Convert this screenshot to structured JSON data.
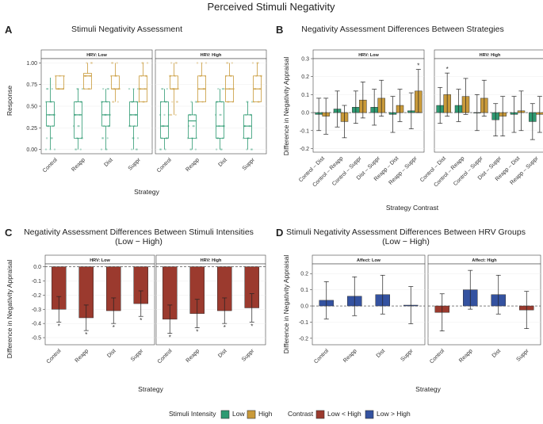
{
  "title": "Perceived Stimuli Negativity",
  "colors": {
    "low_green": "#2e9a72",
    "high_gold": "#c99a3a",
    "low_lt_high_red": "#9b3a2e",
    "low_gt_high_blue": "#3452a0"
  },
  "panels": {
    "A": {
      "letter": "A",
      "title": "Stimuli Negativity Assessment",
      "strips": [
        "HRV: Low",
        "HRV: High"
      ],
      "xlabel": "Strategy",
      "ylabel": "Response"
    },
    "B": {
      "letter": "B",
      "title": "Negativity Assessment Differences Between Strategies",
      "strips": [
        "HRV: Low",
        "HRV: High"
      ],
      "xlabel": "Strategy Contrast",
      "ylabel": "Difference in Negativity Appraisal"
    },
    "C": {
      "letter": "C",
      "title_line1": "Negativity Assessment Differences Between Stimuli Intensities",
      "title_line2": "(Low − High)",
      "strips": [
        "HRV: Low",
        "HRV: High"
      ],
      "xlabel": "Strategy",
      "ylabel": "Difference in Negativity Appraisal"
    },
    "D": {
      "letter": "D",
      "title_line1": "Stimuli Negativity Assessment Differences Between HRV Groups",
      "title_line2": "(Low − High)",
      "strips": [
        "Affect: Low",
        "Affect: High"
      ],
      "xlabel": "Strategy",
      "ylabel": "Difference in Negativity Appraisal"
    }
  },
  "legend": {
    "intensity_title": "Stimuli Intensity",
    "intensity_items": [
      "Low",
      "High"
    ],
    "contrast_title": "Contrast",
    "contrast_items": [
      "Low < High",
      "Low > High"
    ]
  },
  "chart_data": [
    {
      "id": "A",
      "type": "box",
      "categories": [
        "Control",
        "Reapp",
        "Dist",
        "Suppr"
      ],
      "facets": [
        "HRV: Low",
        "HRV: High"
      ],
      "series": [
        "Low",
        "High"
      ],
      "ylim": [
        -0.05,
        1.05
      ],
      "yticks": [
        "0.00",
        "0.25",
        "0.50",
        "0.75",
        "1.00"
      ],
      "boxes": [
        [
          [
            {
              "min": 0.0,
              "q1": 0.27,
              "med": 0.4,
              "q3": 0.55,
              "max": 0.83
            },
            {
              "min": 0.7,
              "q1": 0.7,
              "med": 0.7,
              "q3": 0.85,
              "max": 0.85
            }
          ],
          [
            {
              "min": 0.0,
              "q1": 0.13,
              "med": 0.4,
              "q3": 0.55,
              "max": 0.7
            },
            {
              "min": 0.7,
              "q1": 0.7,
              "med": 0.85,
              "q3": 0.88,
              "max": 1.0
            }
          ],
          [
            {
              "min": 0.0,
              "q1": 0.27,
              "med": 0.4,
              "q3": 0.55,
              "max": 0.7
            },
            {
              "min": 0.55,
              "q1": 0.7,
              "med": 0.7,
              "q3": 0.85,
              "max": 1.0
            }
          ],
          [
            {
              "min": 0.0,
              "q1": 0.27,
              "med": 0.4,
              "q3": 0.55,
              "max": 0.7
            },
            {
              "min": 0.55,
              "q1": 0.55,
              "med": 0.7,
              "q3": 0.85,
              "max": 1.0
            }
          ]
        ],
        [
          [
            {
              "min": 0.0,
              "q1": 0.13,
              "med": 0.27,
              "q3": 0.55,
              "max": 0.7
            },
            {
              "min": 0.4,
              "q1": 0.7,
              "med": 0.7,
              "q3": 0.85,
              "max": 1.0
            }
          ],
          [
            {
              "min": 0.0,
              "q1": 0.13,
              "med": 0.33,
              "q3": 0.4,
              "max": 0.55
            },
            {
              "min": 0.55,
              "q1": 0.55,
              "med": 0.7,
              "q3": 0.85,
              "max": 1.0
            }
          ],
          [
            {
              "min": 0.0,
              "q1": 0.13,
              "med": 0.27,
              "q3": 0.55,
              "max": 0.7
            },
            {
              "min": 0.55,
              "q1": 0.55,
              "med": 0.7,
              "q3": 0.85,
              "max": 1.0
            }
          ],
          [
            {
              "min": 0.0,
              "q1": 0.13,
              "med": 0.27,
              "q3": 0.4,
              "max": 0.55
            },
            {
              "min": 0.55,
              "q1": 0.55,
              "med": 0.7,
              "q3": 0.85,
              "max": 1.0
            }
          ]
        ]
      ]
    },
    {
      "id": "B",
      "type": "bar",
      "categories": [
        "Control – Dist",
        "Control – Reapp",
        "Control – Suppr",
        "Dist – Suppr",
        "Reapp – Dist",
        "Reapp – Suppr"
      ],
      "facets": [
        "HRV: Low",
        "HRV: High"
      ],
      "series": [
        "Low",
        "High"
      ],
      "ylim": [
        -0.22,
        0.3
      ],
      "yticks": [
        "0.3",
        "0.2",
        "0.1",
        "0.0",
        "-0.1",
        "-0.2"
      ],
      "values": [
        [
          [
            -0.01,
            -0.02
          ],
          [
            0.02,
            -0.05
          ],
          [
            0.03,
            0.07
          ],
          [
            0.03,
            0.08
          ],
          [
            -0.01,
            0.04
          ],
          [
            0.01,
            0.12
          ]
        ],
        [
          [
            0.04,
            0.1
          ],
          [
            0.04,
            0.09
          ],
          [
            0.0,
            0.08
          ],
          [
            -0.04,
            -0.02
          ],
          [
            -0.01,
            0.01
          ],
          [
            -0.05,
            -0.01
          ]
        ]
      ],
      "err": [
        [
          [
            0.09,
            0.1
          ],
          [
            0.1,
            0.09
          ],
          [
            0.09,
            0.1
          ],
          [
            0.1,
            0.1
          ],
          [
            0.1,
            0.09
          ],
          [
            0.1,
            0.12
          ]
        ],
        [
          [
            0.1,
            0.12
          ],
          [
            0.09,
            0.1
          ],
          [
            0.1,
            0.1
          ],
          [
            0.09,
            0.11
          ],
          [
            0.1,
            0.11
          ],
          [
            0.1,
            0.1
          ]
        ]
      ],
      "stars": [
        [
          [
            false,
            false
          ],
          [
            false,
            false
          ],
          [
            false,
            false
          ],
          [
            false,
            false
          ],
          [
            false,
            false
          ],
          [
            false,
            true
          ]
        ],
        [
          [
            false,
            true
          ],
          [
            false,
            false
          ],
          [
            false,
            false
          ],
          [
            false,
            false
          ],
          [
            false,
            false
          ],
          [
            false,
            false
          ]
        ]
      ]
    },
    {
      "id": "C",
      "type": "bar",
      "categories": [
        "Control",
        "Reapp",
        "Dist",
        "Suppr"
      ],
      "facets": [
        "HRV: Low",
        "HRV: High"
      ],
      "series": [
        "Low < High"
      ],
      "ylim": [
        -0.55,
        0.02
      ],
      "yticks": [
        "0.0",
        "-0.1",
        "-0.2",
        "-0.3",
        "-0.4",
        "-0.5"
      ],
      "values": [
        [
          -0.3,
          -0.36,
          -0.31,
          -0.26
        ],
        [
          -0.37,
          -0.33,
          -0.31,
          -0.29
        ]
      ],
      "err": [
        [
          0.09,
          0.09,
          0.09,
          0.09
        ],
        [
          0.1,
          0.1,
          0.09,
          0.1
        ]
      ],
      "stars": [
        [
          true,
          true,
          true,
          true
        ],
        [
          true,
          true,
          true,
          true
        ]
      ]
    },
    {
      "id": "D",
      "type": "bar",
      "categories": [
        "Control",
        "Reapp",
        "Dist",
        "Suppr"
      ],
      "facets": [
        "Affect: Low",
        "Affect: High"
      ],
      "series": [
        "Low < High",
        "Low > High"
      ],
      "ylim": [
        -0.24,
        0.26
      ],
      "yticks": [
        "0.2",
        "0.1",
        "0.0",
        "-0.1",
        "-0.2"
      ],
      "values": [
        [
          0.035,
          0.06,
          0.07,
          0.005
        ],
        [
          -0.04,
          0.1,
          0.07,
          -0.025
        ]
      ],
      "err": [
        [
          0.115,
          0.12,
          0.12,
          0.115
        ],
        [
          0.115,
          0.12,
          0.12,
          0.115
        ]
      ]
    }
  ]
}
